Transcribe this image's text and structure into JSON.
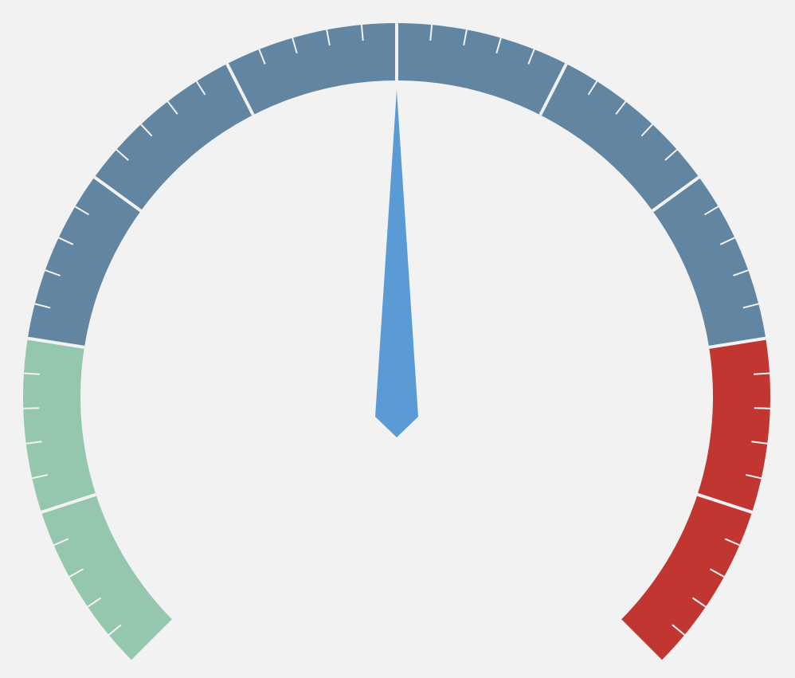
{
  "chart_data": {
    "type": "gauge",
    "title": "",
    "min": 0,
    "max": 100,
    "value": 50,
    "major_divisions": 10,
    "minor_per_major": 5,
    "start_angle_deg": -135,
    "end_angle_deg": 135,
    "bands": [
      {
        "name": "",
        "from": 0,
        "to": 20,
        "color": "#95c6ae"
      },
      {
        "name": "",
        "from": 20,
        "to": 80,
        "color": "#6285a1"
      },
      {
        "name": "",
        "from": 80,
        "to": 100,
        "color": "#c23631"
      }
    ],
    "needle_color": "#5b9bd5",
    "background": "#f2f2f2",
    "tick_color": "#f2f2f2"
  }
}
